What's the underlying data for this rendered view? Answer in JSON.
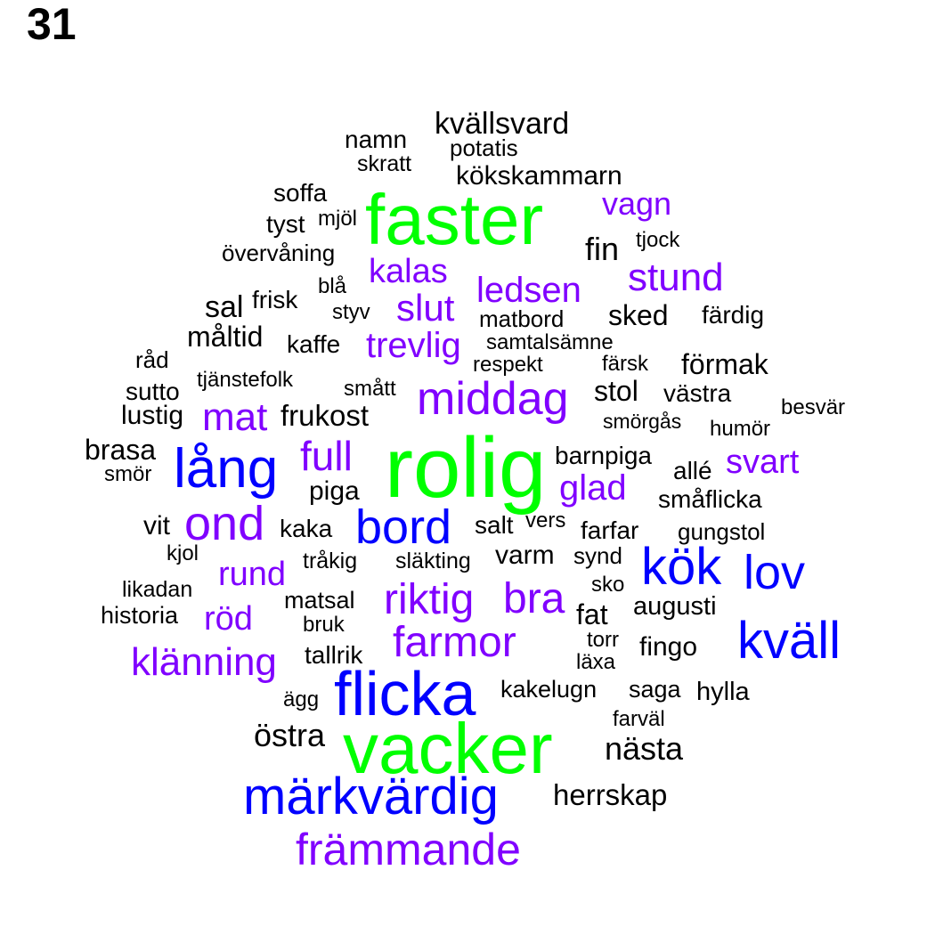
{
  "page_number": "31",
  "colors": {
    "black": "#000000",
    "purple": "#8000ff",
    "blue": "#0000ff",
    "green": "#00ff00"
  },
  "words": [
    {
      "text": "kvällsvard",
      "color": "black"
    },
    {
      "text": "namn",
      "color": "black"
    },
    {
      "text": "potatis",
      "color": "black"
    },
    {
      "text": "skratt",
      "color": "black"
    },
    {
      "text": "kökskammarn",
      "color": "black"
    },
    {
      "text": "soffa",
      "color": "black"
    },
    {
      "text": "faster",
      "color": "green"
    },
    {
      "text": "vagn",
      "color": "purple"
    },
    {
      "text": "tyst",
      "color": "black"
    },
    {
      "text": "mjöl",
      "color": "black"
    },
    {
      "text": "tjock",
      "color": "black"
    },
    {
      "text": "fin",
      "color": "black"
    },
    {
      "text": "övervåning",
      "color": "black"
    },
    {
      "text": "kalas",
      "color": "purple"
    },
    {
      "text": "stund",
      "color": "purple"
    },
    {
      "text": "blå",
      "color": "black"
    },
    {
      "text": "ledsen",
      "color": "purple"
    },
    {
      "text": "sal",
      "color": "black"
    },
    {
      "text": "frisk",
      "color": "black"
    },
    {
      "text": "slut",
      "color": "purple"
    },
    {
      "text": "styv",
      "color": "black"
    },
    {
      "text": "matbord",
      "color": "black"
    },
    {
      "text": "sked",
      "color": "black"
    },
    {
      "text": "färdig",
      "color": "black"
    },
    {
      "text": "måltid",
      "color": "black"
    },
    {
      "text": "kaffe",
      "color": "black"
    },
    {
      "text": "trevlig",
      "color": "purple"
    },
    {
      "text": "samtalsämne",
      "color": "black"
    },
    {
      "text": "råd",
      "color": "black"
    },
    {
      "text": "respekt",
      "color": "black"
    },
    {
      "text": "färsk",
      "color": "black"
    },
    {
      "text": "förmak",
      "color": "black"
    },
    {
      "text": "tjänstefolk",
      "color": "black"
    },
    {
      "text": "sutto",
      "color": "black"
    },
    {
      "text": "smått",
      "color": "black"
    },
    {
      "text": "stol",
      "color": "black"
    },
    {
      "text": "västra",
      "color": "black"
    },
    {
      "text": "middag",
      "color": "purple"
    },
    {
      "text": "besvär",
      "color": "black"
    },
    {
      "text": "lustig",
      "color": "black"
    },
    {
      "text": "mat",
      "color": "purple"
    },
    {
      "text": "frukost",
      "color": "black"
    },
    {
      "text": "smörgås",
      "color": "black"
    },
    {
      "text": "humör",
      "color": "black"
    },
    {
      "text": "brasa",
      "color": "black"
    },
    {
      "text": "full",
      "color": "purple"
    },
    {
      "text": "rolig",
      "color": "green"
    },
    {
      "text": "barnpiga",
      "color": "black"
    },
    {
      "text": "svart",
      "color": "purple"
    },
    {
      "text": "smör",
      "color": "black"
    },
    {
      "text": "lång",
      "color": "blue"
    },
    {
      "text": "allé",
      "color": "black"
    },
    {
      "text": "piga",
      "color": "black"
    },
    {
      "text": "glad",
      "color": "purple"
    },
    {
      "text": "småflicka",
      "color": "black"
    },
    {
      "text": "vit",
      "color": "black"
    },
    {
      "text": "ond",
      "color": "purple"
    },
    {
      "text": "kaka",
      "color": "black"
    },
    {
      "text": "bord",
      "color": "blue"
    },
    {
      "text": "salt",
      "color": "black"
    },
    {
      "text": "vers",
      "color": "black"
    },
    {
      "text": "farfar",
      "color": "black"
    },
    {
      "text": "gungstol",
      "color": "black"
    },
    {
      "text": "kjol",
      "color": "black"
    },
    {
      "text": "tråkig",
      "color": "black"
    },
    {
      "text": "släkting",
      "color": "black"
    },
    {
      "text": "varm",
      "color": "black"
    },
    {
      "text": "synd",
      "color": "black"
    },
    {
      "text": "kök",
      "color": "blue"
    },
    {
      "text": "lov",
      "color": "blue"
    },
    {
      "text": "rund",
      "color": "purple"
    },
    {
      "text": "likadan",
      "color": "black"
    },
    {
      "text": "sko",
      "color": "black"
    },
    {
      "text": "riktig",
      "color": "purple"
    },
    {
      "text": "bra",
      "color": "purple"
    },
    {
      "text": "matsal",
      "color": "black"
    },
    {
      "text": "historia",
      "color": "black"
    },
    {
      "text": "röd",
      "color": "purple"
    },
    {
      "text": "fat",
      "color": "black"
    },
    {
      "text": "augusti",
      "color": "black"
    },
    {
      "text": "bruk",
      "color": "black"
    },
    {
      "text": "torr",
      "color": "black"
    },
    {
      "text": "kväll",
      "color": "blue"
    },
    {
      "text": "farmor",
      "color": "purple"
    },
    {
      "text": "fingo",
      "color": "black"
    },
    {
      "text": "klänning",
      "color": "purple"
    },
    {
      "text": "tallrik",
      "color": "black"
    },
    {
      "text": "läxa",
      "color": "black"
    },
    {
      "text": "flicka",
      "color": "blue"
    },
    {
      "text": "kakelugn",
      "color": "black"
    },
    {
      "text": "saga",
      "color": "black"
    },
    {
      "text": "hylla",
      "color": "black"
    },
    {
      "text": "ägg",
      "color": "black"
    },
    {
      "text": "farväl",
      "color": "black"
    },
    {
      "text": "östra",
      "color": "black"
    },
    {
      "text": "vacker",
      "color": "green"
    },
    {
      "text": "nästa",
      "color": "black"
    },
    {
      "text": "herrskap",
      "color": "black"
    },
    {
      "text": "märkvärdig",
      "color": "blue"
    },
    {
      "text": "främmande",
      "color": "purple"
    }
  ]
}
